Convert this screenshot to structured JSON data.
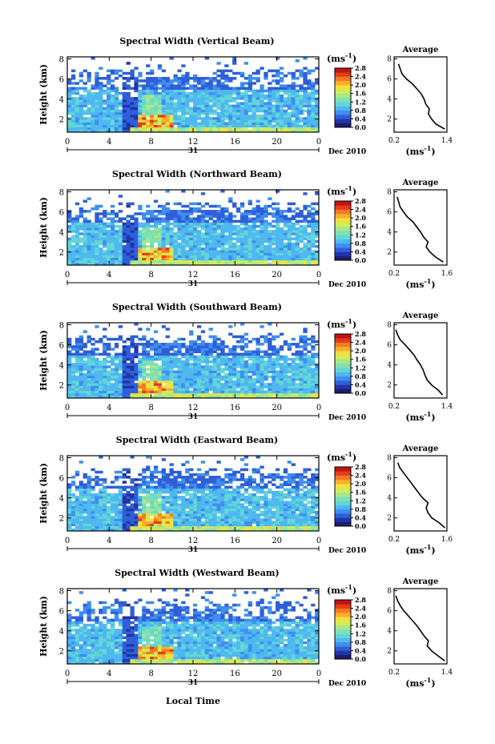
{
  "figure": {
    "x_axis_label": "Local Time",
    "date_label": "Dec 2010",
    "day_label": "31",
    "colorbar_unit": "(ms",
    "colorbar_unit_exp": "-1",
    "avg_title": "Average",
    "avg_unit": "(ms",
    "avg_unit_exp": "-1",
    "colorscale": [
      "#1d1d6e",
      "#2233a8",
      "#2f5fd8",
      "#3f8ef0",
      "#4fb8f0",
      "#63d6d6",
      "#7fe0b4",
      "#a6e88a",
      "#d0ec5c",
      "#f3e03a",
      "#f8b02c",
      "#f37a22",
      "#e43c1a",
      "#c01414"
    ]
  },
  "chart_data": [
    {
      "type": "heatmap",
      "title": "Spectral Width (Vertical Beam)",
      "ylabel": "Height (km)",
      "xticks": [
        "0",
        "4",
        "8",
        "12",
        "16",
        "20",
        "0"
      ],
      "xlim": [
        0,
        24
      ],
      "yticks": [
        "2",
        "4",
        "6",
        "8"
      ],
      "ylim": [
        0.7,
        8.2
      ],
      "colorbar_ticks": [
        "0.0",
        "0.4",
        "0.8",
        "1.2",
        "1.6",
        "2.0",
        "2.4",
        "2.8"
      ],
      "clim": [
        0,
        2.8
      ],
      "average_profile": {
        "xticks": [
          "0.2",
          "1.4"
        ],
        "xlim": [
          0.2,
          1.4
        ],
        "yticks": [
          "2",
          "4",
          "6",
          "8"
        ],
        "ylim": [
          0.7,
          8.2
        ],
        "height": [
          1.0,
          1.5,
          2.0,
          2.5,
          3.0,
          3.5,
          4.0,
          4.5,
          5.0,
          5.5,
          6.0,
          6.5,
          7.0,
          7.5
        ],
        "width": [
          1.35,
          1.15,
          1.05,
          0.98,
          1.0,
          0.92,
          0.88,
          0.82,
          0.72,
          0.62,
          0.48,
          0.38,
          0.34,
          0.3
        ]
      }
    },
    {
      "type": "heatmap",
      "title": "Spectral Width (Northward Beam)",
      "ylabel": "Height (km)",
      "xticks": [
        "0",
        "4",
        "8",
        "12",
        "16",
        "20",
        "0"
      ],
      "xlim": [
        0,
        24
      ],
      "yticks": [
        "2",
        "4",
        "6",
        "8"
      ],
      "ylim": [
        0.7,
        8.2
      ],
      "colorbar_ticks": [
        "0.0",
        "0.4",
        "0.8",
        "1.2",
        "1.6",
        "2.0",
        "2.4",
        "2.8"
      ],
      "clim": [
        0,
        2.8
      ],
      "average_profile": {
        "xticks": [
          "0.2",
          "1.6"
        ],
        "xlim": [
          0.2,
          1.6
        ],
        "yticks": [
          "2",
          "4",
          "6",
          "8"
        ],
        "ylim": [
          0.7,
          8.2
        ],
        "height": [
          1.0,
          1.5,
          2.0,
          2.5,
          3.0,
          3.5,
          4.0,
          4.5,
          5.0,
          5.5,
          6.0,
          6.5,
          7.0,
          7.5
        ],
        "width": [
          1.5,
          1.3,
          1.15,
          1.05,
          1.1,
          0.98,
          0.9,
          0.8,
          0.7,
          0.55,
          0.45,
          0.36,
          0.32,
          0.28
        ]
      }
    },
    {
      "type": "heatmap",
      "title": "Spectral Width (Southward Beam)",
      "ylabel": "Height (km)",
      "xticks": [
        "0",
        "4",
        "8",
        "12",
        "16",
        "20",
        "0"
      ],
      "xlim": [
        0,
        24
      ],
      "yticks": [
        "2",
        "4",
        "6",
        "8"
      ],
      "ylim": [
        0.7,
        8.2
      ],
      "colorbar_ticks": [
        "0.0",
        "0.4",
        "0.8",
        "1.2",
        "1.6",
        "2.0",
        "2.4",
        "2.8"
      ],
      "clim": [
        0,
        2.8
      ],
      "average_profile": {
        "xticks": [
          "0.2",
          "1.4"
        ],
        "xlim": [
          0.2,
          1.4
        ],
        "yticks": [
          "2",
          "4",
          "6",
          "8"
        ],
        "ylim": [
          0.7,
          8.2
        ],
        "height": [
          1.0,
          1.5,
          2.0,
          2.5,
          3.0,
          3.5,
          4.0,
          4.5,
          5.0,
          5.5,
          6.0,
          6.5,
          7.0,
          7.5
        ],
        "width": [
          1.3,
          1.2,
          1.05,
          0.95,
          0.9,
          0.86,
          0.8,
          0.72,
          0.65,
          0.55,
          0.45,
          0.34,
          0.28,
          0.24
        ]
      }
    },
    {
      "type": "heatmap",
      "title": "Spectral Width (Eastward Beam)",
      "ylabel": "Height (km)",
      "xticks": [
        "0",
        "4",
        "8",
        "12",
        "16",
        "20",
        "0"
      ],
      "xlim": [
        0,
        24
      ],
      "yticks": [
        "2",
        "4",
        "6",
        "8"
      ],
      "ylim": [
        0.7,
        8.2
      ],
      "colorbar_ticks": [
        "0.0",
        "0.4",
        "0.8",
        "1.2",
        "1.6",
        "2.0",
        "2.4",
        "2.8"
      ],
      "clim": [
        0,
        2.8
      ],
      "average_profile": {
        "xticks": [
          "0.2",
          "1.6"
        ],
        "xlim": [
          0.2,
          1.6
        ],
        "yticks": [
          "2",
          "4",
          "6",
          "8"
        ],
        "ylim": [
          0.7,
          8.2
        ],
        "height": [
          1.0,
          1.5,
          2.0,
          2.5,
          3.0,
          3.5,
          4.0,
          4.5,
          5.0,
          5.5,
          6.0,
          6.5,
          7.0,
          7.5
        ],
        "width": [
          1.55,
          1.4,
          1.2,
          1.1,
          1.05,
          1.1,
          0.95,
          0.85,
          0.75,
          0.65,
          0.55,
          0.45,
          0.35,
          0.3
        ]
      }
    },
    {
      "type": "heatmap",
      "title": "Spectral Width (Westward Beam)",
      "ylabel": "Height (km)",
      "xticks": [
        "0",
        "4",
        "8",
        "12",
        "16",
        "20",
        "0"
      ],
      "xlim": [
        0,
        24
      ],
      "yticks": [
        "2",
        "4",
        "6",
        "8"
      ],
      "ylim": [
        0.7,
        8.2
      ],
      "colorbar_ticks": [
        "0.0",
        "0.4",
        "0.8",
        "1.2",
        "1.6",
        "2.0",
        "2.4",
        "2.8"
      ],
      "clim": [
        0,
        2.8
      ],
      "average_profile": {
        "xticks": [
          "0.2",
          "1.4"
        ],
        "xlim": [
          0.2,
          1.4
        ],
        "yticks": [
          "2",
          "4",
          "6",
          "8"
        ],
        "ylim": [
          0.7,
          8.2
        ],
        "height": [
          1.0,
          1.5,
          2.0,
          2.5,
          3.0,
          3.5,
          4.0,
          4.5,
          5.0,
          5.5,
          6.0,
          6.5,
          7.0,
          7.5
        ],
        "width": [
          1.35,
          1.2,
          1.05,
          0.95,
          0.98,
          0.88,
          0.8,
          0.72,
          0.62,
          0.52,
          0.42,
          0.34,
          0.28,
          0.24
        ]
      }
    }
  ]
}
